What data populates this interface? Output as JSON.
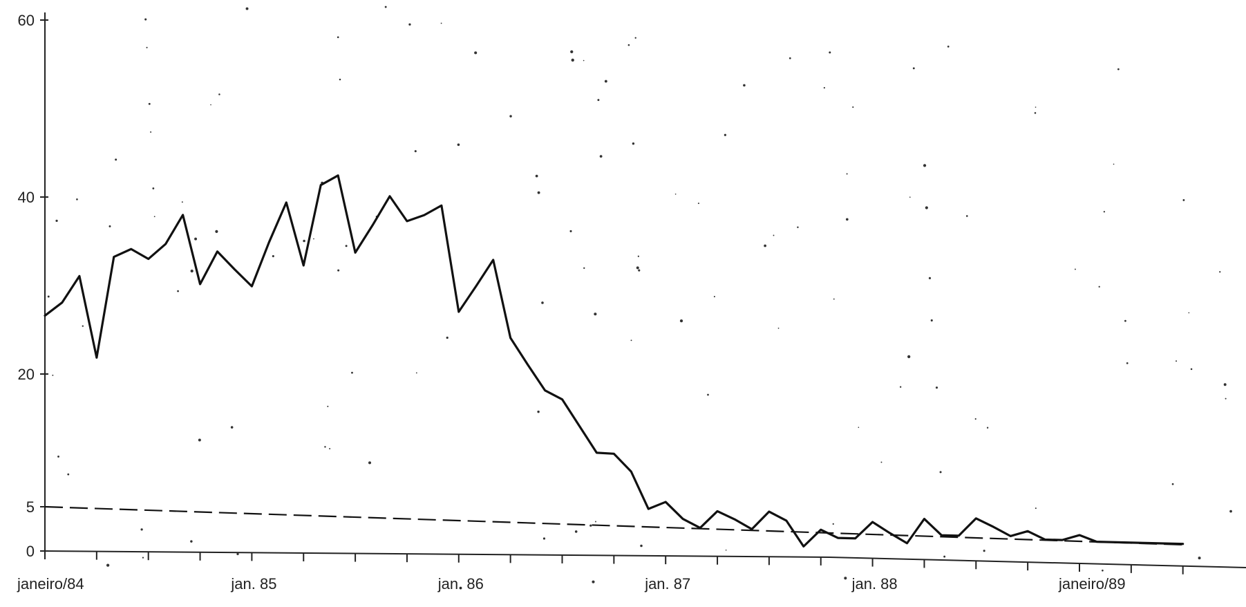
{
  "chart_data": {
    "type": "line",
    "title": "",
    "xlabel": "",
    "ylabel": "",
    "ylim": [
      0,
      60
    ],
    "xlim": [
      "1984-01",
      "1989-07"
    ],
    "grid": false,
    "legend": "none",
    "y_ticks": [
      0,
      5,
      20,
      40,
      60
    ],
    "y_tick_labels": [
      "0",
      "5",
      "20",
      "40",
      "60"
    ],
    "x_ticks": [
      "1984-01",
      "1985-01",
      "1986-01",
      "1987-01",
      "1988-01",
      "1989-01"
    ],
    "x_tick_labels": [
      "janeiro/84",
      "jan. 85",
      "jan. 86",
      "jan. 87",
      "jan. 88",
      "janeiro/89"
    ],
    "series": [
      {
        "x": [
          "1984-01",
          "1984-02",
          "1984-03",
          "1984-04",
          "1984-05",
          "1984-06",
          "1984-07",
          "1984-08",
          "1984-09",
          "1984-10",
          "1984-11",
          "1984-12",
          "1985-01",
          "1985-02",
          "1985-03",
          "1985-04",
          "1985-05",
          "1985-06",
          "1985-07",
          "1985-08",
          "1985-09",
          "1985-10",
          "1985-11",
          "1985-12",
          "1986-01",
          "1986-02",
          "1986-03",
          "1986-04",
          "1986-05",
          "1986-06",
          "1986-07",
          "1986-08",
          "1986-09",
          "1986-10",
          "1986-11",
          "1986-12",
          "1987-01",
          "1987-02",
          "1987-03",
          "1987-04",
          "1987-05",
          "1987-06",
          "1987-07",
          "1987-08",
          "1987-09",
          "1987-10",
          "1987-11",
          "1987-12",
          "1988-01",
          "1988-02",
          "1988-03",
          "1988-04",
          "1988-05",
          "1988-06",
          "1988-07",
          "1988-08",
          "1988-09",
          "1988-10",
          "1988-11",
          "1988-12",
          "1989-01",
          "1989-02",
          "1989-03",
          "1989-04",
          "1989-05",
          "1989-06",
          "1989-07"
        ],
        "values": [
          26.6,
          28.1,
          31.1,
          21.9,
          33.3,
          34.2,
          33.1,
          34.8,
          38.1,
          30.3,
          34.0,
          32.0,
          30.1,
          35.1,
          39.6,
          32.5,
          41.6,
          42.7,
          34.0,
          37.1,
          40.4,
          37.6,
          38.3,
          39.4,
          27.4,
          30.3,
          33.3,
          24.5,
          21.5,
          18.6,
          17.6,
          14.6,
          11.6,
          11.5,
          9.5,
          5.3,
          6.1,
          4.2,
          3.2,
          5.1,
          4.2,
          3.1,
          5.1,
          4.1,
          1.2,
          3.1,
          2.2,
          2.2,
          4.1,
          2.9,
          1.8,
          4.6,
          2.8,
          2.8,
          4.8,
          3.9,
          2.9,
          3.5,
          2.6,
          2.6,
          3.2,
          2.5,
          2.5,
          2.5,
          2.5,
          2.5,
          2.5
        ]
      }
    ],
    "reference_line": {
      "style": "dashed",
      "start": [
        "1984-01",
        5.0
      ],
      "end": [
        "1989-07",
        2.4
      ]
    }
  }
}
